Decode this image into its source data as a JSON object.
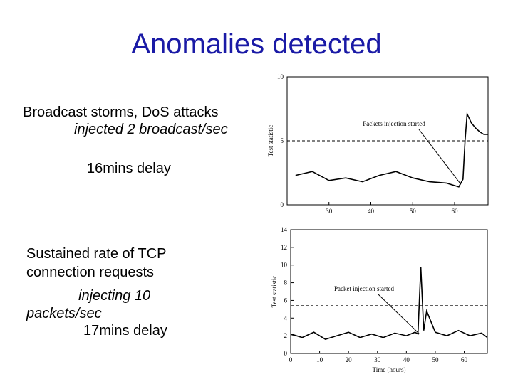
{
  "slide": {
    "title": "Anomalies detected",
    "block1": {
      "line1": "Broadcast storms, DoS attacks",
      "line2": "injected 2 broadcast/sec",
      "line3": "16mins delay"
    },
    "block2": {
      "line1": "Sustained rate of TCP",
      "line2": "connection requests",
      "line3": "injecting 10",
      "line4": "packets/sec",
      "line5": "17mins delay"
    }
  },
  "chart_data": [
    {
      "type": "line",
      "ylabel": "Test statistic",
      "xlabel": "",
      "xlim": [
        20,
        68
      ],
      "ylim": [
        0,
        10
      ],
      "xticks": [
        30,
        40,
        50,
        60
      ],
      "yticks": [
        0,
        5,
        10
      ],
      "threshold": 5,
      "annotation": "Packets injection started",
      "series": [
        {
          "x": [
            22,
            26,
            30,
            34,
            38,
            42,
            46,
            50,
            54,
            58,
            61,
            62,
            62.5,
            63,
            64,
            65,
            66,
            67,
            68
          ],
          "values": [
            2.3,
            2.6,
            1.9,
            2.1,
            1.8,
            2.3,
            2.6,
            2.1,
            1.8,
            1.7,
            1.4,
            2.0,
            5.0,
            7.1,
            6.4,
            6.0,
            5.7,
            5.5,
            5.5
          ]
        }
      ]
    },
    {
      "type": "line",
      "ylabel": "Test statistic",
      "xlabel": "Time (hours)",
      "xlim": [
        0,
        68
      ],
      "ylim": [
        0,
        14
      ],
      "xticks": [
        0,
        10,
        20,
        30,
        40,
        50,
        60
      ],
      "yticks": [
        0,
        2,
        4,
        6,
        8,
        10,
        12,
        14
      ],
      "threshold": 5.4,
      "annotation": "Packet injection started",
      "series": [
        {
          "x": [
            0,
            4,
            8,
            12,
            16,
            20,
            24,
            28,
            32,
            36,
            40,
            43,
            44,
            45,
            46,
            47,
            50,
            54,
            58,
            62,
            66,
            68
          ],
          "values": [
            2.2,
            1.8,
            2.4,
            1.6,
            2.0,
            2.4,
            1.8,
            2.2,
            1.8,
            2.3,
            2.0,
            2.4,
            2.2,
            9.8,
            2.6,
            4.8,
            2.4,
            2.0,
            2.6,
            2.0,
            2.3,
            1.8
          ]
        }
      ]
    }
  ]
}
